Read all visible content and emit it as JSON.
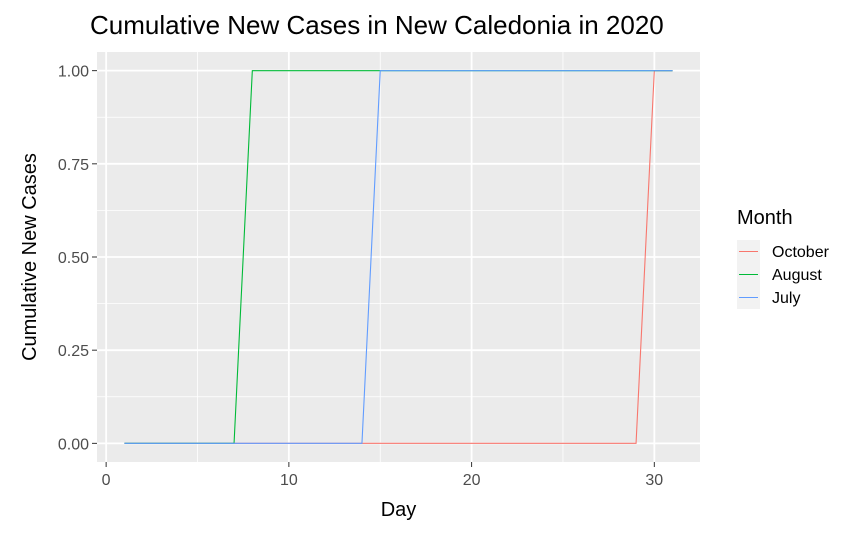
{
  "chart_data": {
    "type": "line",
    "title": "Cumulative New Cases in New Caledonia in 2020",
    "xlabel": "Day",
    "ylabel": "Cumulative New Cases",
    "xlim": [
      -0.5,
      32.5
    ],
    "ylim": [
      -0.05,
      1.05
    ],
    "x_ticks": [
      0,
      10,
      20,
      30
    ],
    "y_ticks": [
      0.0,
      0.25,
      0.5,
      0.75,
      1.0
    ],
    "y_tick_labels": [
      "0.00",
      "0.25",
      "0.50",
      "0.75",
      "1.00"
    ],
    "grid": true,
    "background": "#ebebeb",
    "legend": {
      "title": "Month",
      "position": "right"
    },
    "series": [
      {
        "name": "October",
        "color": "#F8766D",
        "x": [
          1,
          29,
          30,
          31
        ],
        "y": [
          0,
          0,
          1,
          1
        ]
      },
      {
        "name": "August",
        "color": "#00BA38",
        "x": [
          1,
          7,
          8,
          31
        ],
        "y": [
          0,
          0,
          1,
          1
        ]
      },
      {
        "name": "July",
        "color": "#619CFF",
        "x": [
          1,
          14,
          15,
          31
        ],
        "y": [
          0,
          0,
          1,
          1
        ]
      }
    ]
  }
}
